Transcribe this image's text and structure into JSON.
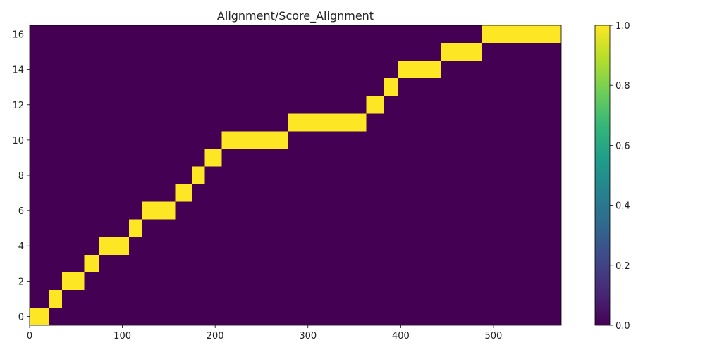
{
  "chart_data": {
    "type": "heatmap",
    "title": "Alignment/Score_Alignment",
    "xlabel": "",
    "ylabel": "",
    "xlim": [
      0,
      573
    ],
    "ylim": [
      -0.5,
      16.5
    ],
    "x_ticks": [
      0,
      100,
      200,
      300,
      400,
      500
    ],
    "y_ticks": [
      0,
      2,
      4,
      6,
      8,
      10,
      12,
      14,
      16
    ],
    "grid": false,
    "legend": "none",
    "colormap": "viridis",
    "background_value": 0.0,
    "background_color": "#440154",
    "highlight_color": "#fde725",
    "colorbar": {
      "range": [
        0.0,
        1.0
      ],
      "ticks": [
        0.0,
        0.2,
        0.4,
        0.6,
        0.8,
        1.0
      ],
      "tick_labels": [
        "0.0",
        "0.2",
        "0.4",
        "0.6",
        "0.8",
        "1.0"
      ],
      "gradient_colors": [
        "#440154",
        "#482878",
        "#3e4989",
        "#31688e",
        "#26828e",
        "#1f9e89",
        "#35b779",
        "#6ece58",
        "#b5de2b",
        "#fde725"
      ]
    },
    "cells": [
      {
        "y": 0,
        "x_start": 0,
        "x_end": 21,
        "value": 1.0
      },
      {
        "y": 1,
        "x_start": 21,
        "x_end": 35,
        "value": 1.0
      },
      {
        "y": 2,
        "x_start": 35,
        "x_end": 59,
        "value": 1.0
      },
      {
        "y": 3,
        "x_start": 59,
        "x_end": 75,
        "value": 1.0
      },
      {
        "y": 4,
        "x_start": 75,
        "x_end": 107,
        "value": 1.0
      },
      {
        "y": 5,
        "x_start": 107,
        "x_end": 121,
        "value": 1.0
      },
      {
        "y": 6,
        "x_start": 121,
        "x_end": 157,
        "value": 1.0
      },
      {
        "y": 7,
        "x_start": 157,
        "x_end": 175,
        "value": 1.0
      },
      {
        "y": 8,
        "x_start": 175,
        "x_end": 189,
        "value": 1.0
      },
      {
        "y": 9,
        "x_start": 189,
        "x_end": 207,
        "value": 1.0
      },
      {
        "y": 10,
        "x_start": 207,
        "x_end": 278,
        "value": 1.0
      },
      {
        "y": 11,
        "x_start": 278,
        "x_end": 363,
        "value": 1.0
      },
      {
        "y": 12,
        "x_start": 363,
        "x_end": 382,
        "value": 1.0
      },
      {
        "y": 13,
        "x_start": 382,
        "x_end": 397,
        "value": 1.0
      },
      {
        "y": 14,
        "x_start": 397,
        "x_end": 443,
        "value": 1.0
      },
      {
        "y": 15,
        "x_start": 443,
        "x_end": 487,
        "value": 1.0
      },
      {
        "y": 16,
        "x_start": 487,
        "x_end": 573,
        "value": 1.0
      }
    ]
  }
}
